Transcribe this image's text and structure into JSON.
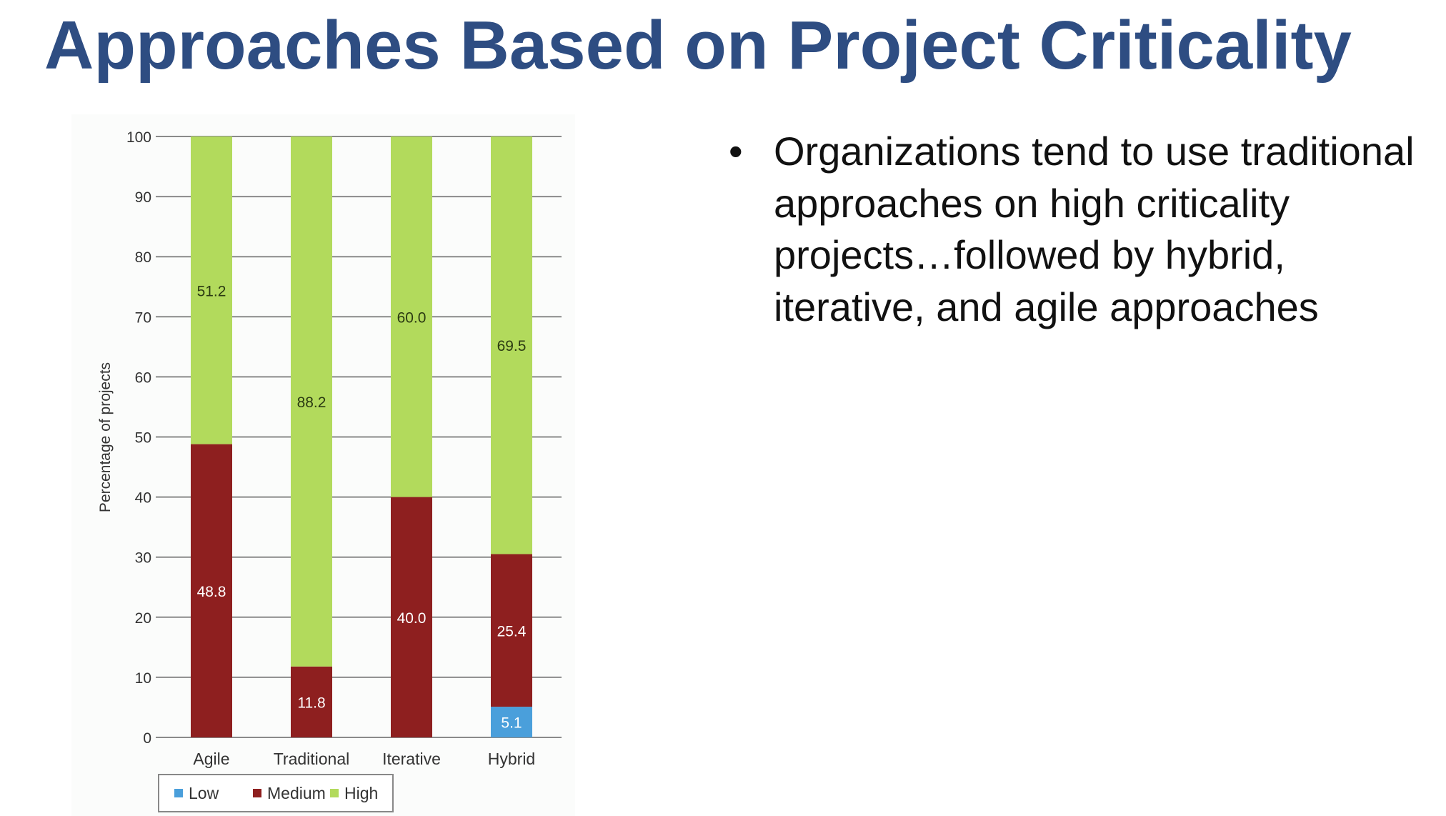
{
  "slide": {
    "title": "Approaches Based on Project Criticality",
    "bullet_marker": "•",
    "bullet_text": "Organizations tend to use traditional approaches on high criticality projects…followed by hybrid, iterative, and agile approaches"
  },
  "chart_data": {
    "type": "bar",
    "stacked": true,
    "title": "",
    "xlabel": "",
    "ylabel": "Percentage of projects",
    "categories": [
      "Agile",
      "Traditional",
      "Iterative",
      "Hybrid"
    ],
    "ylim": [
      0,
      100
    ],
    "yticks": [
      0,
      10,
      20,
      30,
      40,
      50,
      60,
      70,
      80,
      90,
      100
    ],
    "grid": true,
    "legend_position": "bottom",
    "series": [
      {
        "name": "Low",
        "color": "#4a9fdb",
        "values": [
          0,
          0,
          0,
          5.1
        ],
        "labels": [
          "",
          "",
          "",
          "5.1"
        ]
      },
      {
        "name": "Medium",
        "color": "#8e1f1f",
        "values": [
          48.8,
          11.8,
          40.0,
          25.4
        ],
        "labels": [
          "48.8",
          "11.8",
          "40.0",
          "25.4"
        ]
      },
      {
        "name": "High",
        "color": "#b2da5c",
        "values": [
          51.2,
          88.2,
          60.0,
          69.5
        ],
        "labels": [
          "51.2",
          "88.2",
          "60.0",
          "69.5"
        ]
      }
    ]
  }
}
